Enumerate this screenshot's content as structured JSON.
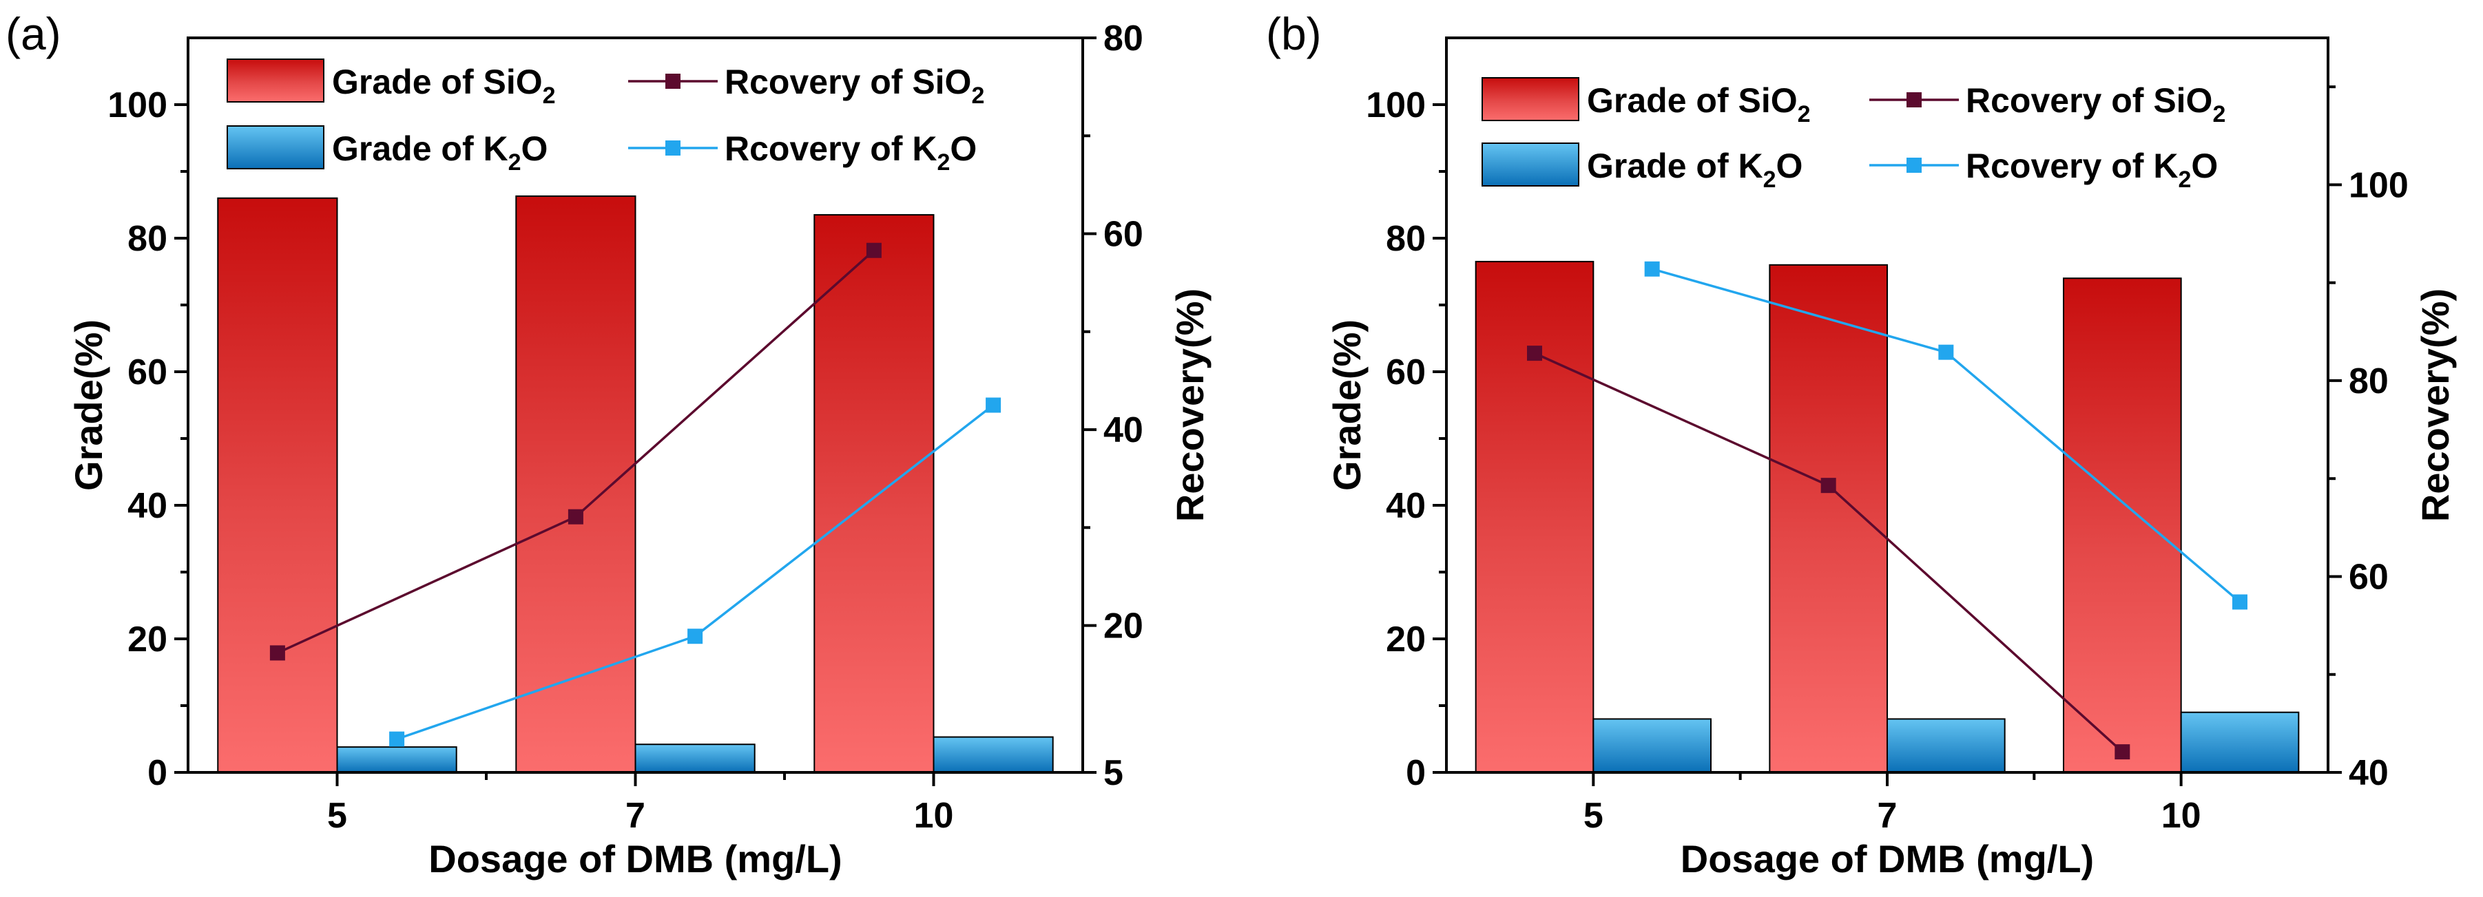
{
  "chart_data": [
    {
      "panel_label": "(a)",
      "type": "bar",
      "xlabel": "Dosage of DMB (mg/L)",
      "ylabel": "Grade(%)",
      "y2label": "Recovery(%)",
      "categories": [
        "5",
        "7",
        "10"
      ],
      "ylim": [
        0,
        110
      ],
      "yticks": [
        0,
        20,
        40,
        60,
        80,
        100
      ],
      "y2lim": [
        5,
        80
      ],
      "y2ticks": [
        5,
        20,
        40,
        60,
        80
      ],
      "series": [
        {
          "name": "Grade of SiO2",
          "kind": "bar",
          "axis": "left",
          "values": [
            86.0,
            86.3,
            83.5
          ]
        },
        {
          "name": "Grade of K2O",
          "kind": "bar",
          "axis": "left",
          "values": [
            3.8,
            4.2,
            5.3
          ]
        },
        {
          "name": "Rcovery of SiO2",
          "kind": "line",
          "axis": "right",
          "values": [
            17.2,
            31.1,
            58.3
          ]
        },
        {
          "name": "Rcovery of K2O",
          "kind": "line",
          "axis": "right",
          "values": [
            8.4,
            18.9,
            42.5
          ]
        }
      ],
      "legend": [
        {
          "pre": "Grade of SiO",
          "sub": "2"
        },
        {
          "pre": "Rcovery of SiO",
          "sub": "2"
        },
        {
          "pre": "Grade of K",
          "sub": "2",
          "post": "O"
        },
        {
          "pre": "Rcovery of K",
          "sub": "2",
          "post": "O"
        }
      ]
    },
    {
      "panel_label": "(b)",
      "type": "bar",
      "xlabel": "Dosage of DMB (mg/L)",
      "ylabel": "Grade(%)",
      "y2label": "Recovery(%)",
      "categories": [
        "5",
        "7",
        "10"
      ],
      "ylim": [
        0,
        110
      ],
      "yticks": [
        0,
        20,
        40,
        60,
        80,
        100
      ],
      "y2lim": [
        40,
        115
      ],
      "y2ticks": [
        40,
        60,
        80,
        100
      ],
      "series": [
        {
          "name": "Grade of SiO2",
          "kind": "bar",
          "axis": "left",
          "values": [
            76.5,
            76.0,
            74.0
          ]
        },
        {
          "name": "Grade of K2O",
          "kind": "bar",
          "axis": "left",
          "values": [
            8.0,
            8.0,
            9.0
          ]
        },
        {
          "name": "Rcovery of SiO2",
          "kind": "line",
          "axis": "right",
          "values": [
            82.8,
            69.3,
            42.1
          ]
        },
        {
          "name": "Rcovery of K2O",
          "kind": "line",
          "axis": "right",
          "values": [
            91.4,
            82.9,
            57.4
          ]
        }
      ],
      "legend": [
        {
          "pre": "Grade of SiO",
          "sub": "2"
        },
        {
          "pre": "Rcovery of SiO",
          "sub": "2"
        },
        {
          "pre": "Grade of K",
          "sub": "2",
          "post": "O"
        },
        {
          "pre": "Rcovery of K",
          "sub": "2",
          "post": "O"
        }
      ]
    }
  ]
}
